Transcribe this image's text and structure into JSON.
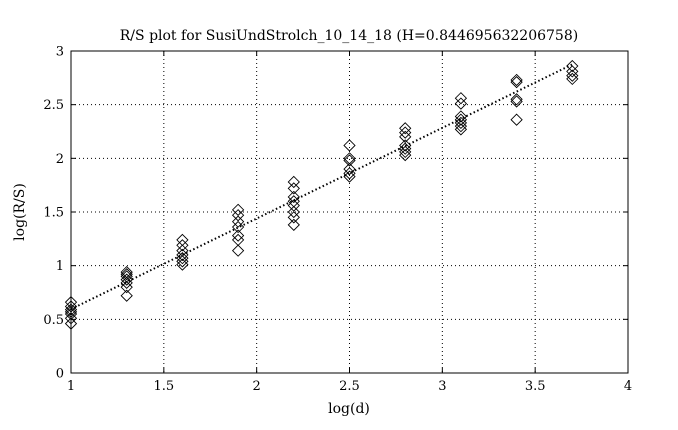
{
  "chart_data": {
    "type": "scatter",
    "title": "R/S plot for SusiUndStrolch_10_14_18 (H=0.844695632206758)",
    "xlabel": "log(d)",
    "ylabel": "log(R/S)",
    "xlim": [
      1,
      4
    ],
    "ylim": [
      0,
      3
    ],
    "x_ticks": [
      "1",
      "1.5",
      "2",
      "2.5",
      "3",
      "3.5",
      "4"
    ],
    "y_ticks": [
      "0",
      "0.5",
      "1",
      "1.5",
      "2",
      "2.5",
      "3"
    ],
    "grid": true,
    "marker": "diamond",
    "series": [
      {
        "points": [
          [
            1.0,
            0.66
          ],
          [
            1.0,
            0.62
          ],
          [
            1.0,
            0.59
          ],
          [
            1.0,
            0.57
          ],
          [
            1.0,
            0.55
          ],
          [
            1.0,
            0.51
          ],
          [
            1.0,
            0.46
          ],
          [
            1.3,
            0.94
          ],
          [
            1.3,
            0.92
          ],
          [
            1.3,
            0.9
          ],
          [
            1.3,
            0.87
          ],
          [
            1.3,
            0.84
          ],
          [
            1.3,
            0.8
          ],
          [
            1.3,
            0.72
          ],
          [
            1.6,
            1.24
          ],
          [
            1.6,
            1.19
          ],
          [
            1.6,
            1.14
          ],
          [
            1.6,
            1.1
          ],
          [
            1.6,
            1.07
          ],
          [
            1.6,
            1.04
          ],
          [
            1.6,
            1.01
          ],
          [
            1.9,
            1.52
          ],
          [
            1.9,
            1.47
          ],
          [
            1.9,
            1.41
          ],
          [
            1.9,
            1.36
          ],
          [
            1.9,
            1.28
          ],
          [
            1.9,
            1.24
          ],
          [
            1.9,
            1.14
          ],
          [
            2.2,
            1.78
          ],
          [
            2.2,
            1.72
          ],
          [
            2.2,
            1.64
          ],
          [
            2.2,
            1.6
          ],
          [
            2.2,
            1.56
          ],
          [
            2.2,
            1.5
          ],
          [
            2.2,
            1.45
          ],
          [
            2.2,
            1.38
          ],
          [
            2.5,
            2.12
          ],
          [
            2.5,
            2.0
          ],
          [
            2.5,
            1.98
          ],
          [
            2.5,
            1.9
          ],
          [
            2.5,
            1.86
          ],
          [
            2.5,
            1.83
          ],
          [
            2.8,
            2.28
          ],
          [
            2.8,
            2.24
          ],
          [
            2.8,
            2.2
          ],
          [
            2.8,
            2.12
          ],
          [
            2.8,
            2.09
          ],
          [
            2.8,
            2.06
          ],
          [
            2.8,
            2.03
          ],
          [
            3.1,
            2.56
          ],
          [
            3.1,
            2.51
          ],
          [
            3.1,
            2.39
          ],
          [
            3.1,
            2.36
          ],
          [
            3.1,
            2.33
          ],
          [
            3.1,
            2.3
          ],
          [
            3.1,
            2.27
          ],
          [
            3.4,
            2.73
          ],
          [
            3.4,
            2.71
          ],
          [
            3.4,
            2.55
          ],
          [
            3.4,
            2.53
          ],
          [
            3.4,
            2.36
          ],
          [
            3.7,
            2.86
          ],
          [
            3.7,
            2.81
          ],
          [
            3.7,
            2.77
          ],
          [
            3.7,
            2.74
          ]
        ]
      }
    ],
    "fit_line": {
      "style": "dotted",
      "x": [
        1.0,
        3.7
      ],
      "y": [
        0.595,
        2.875
      ]
    }
  }
}
